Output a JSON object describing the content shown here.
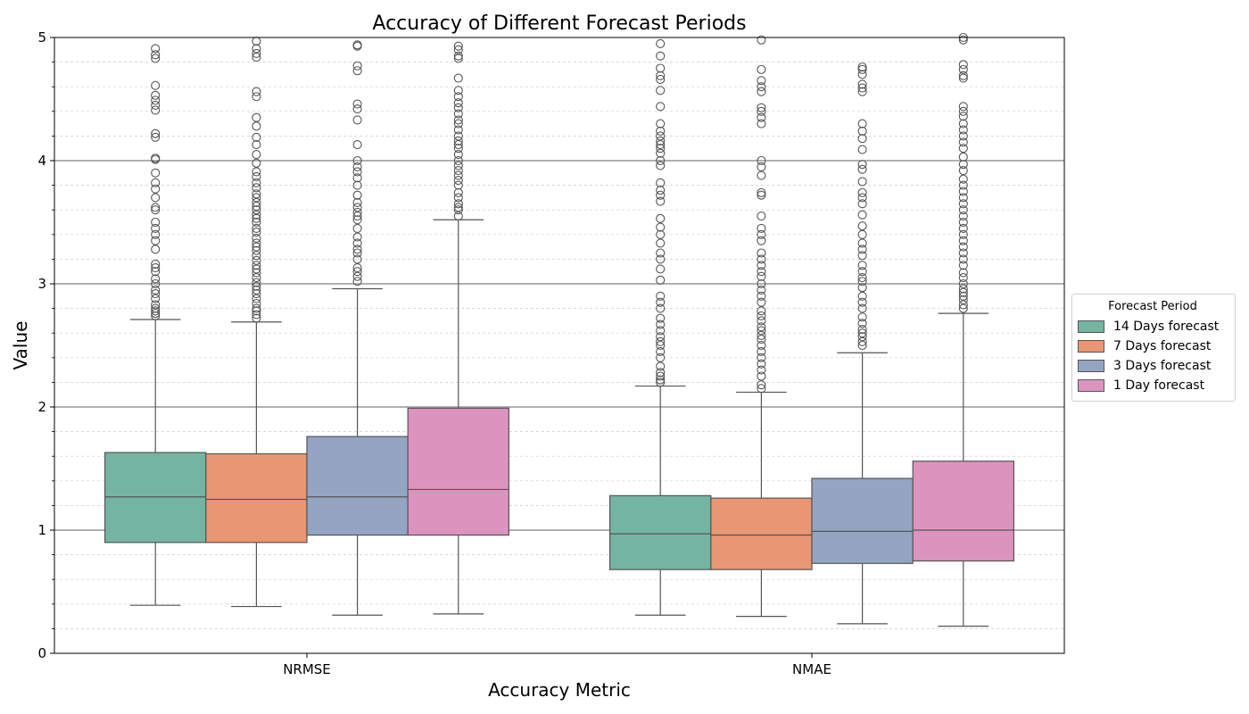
{
  "chart_data": {
    "type": "box",
    "title": "Accuracy of Different Forecast Periods",
    "xlabel": "Accuracy Metric",
    "ylabel": "Value",
    "ylim": [
      0,
      5
    ],
    "yticks": [
      "0",
      "1",
      "2",
      "3",
      "4",
      "5"
    ],
    "major_grid": true,
    "minor_grid": true,
    "categories": [
      "NRMSE",
      "NMAE"
    ],
    "legend": {
      "title": "Forecast Period",
      "placement": "center-right outside"
    },
    "series": [
      {
        "name": "14 Days forecast",
        "color": "#73b5a1",
        "boxes": [
          {
            "whisker_low": 0.39,
            "q1": 0.9,
            "median": 1.27,
            "q3": 1.63,
            "whisker_high": 2.71,
            "outliers": [
              2.74,
              2.76,
              2.78,
              2.8,
              2.83,
              2.88,
              2.92,
              2.95,
              3.0,
              3.04,
              3.1,
              3.13,
              3.16,
              3.28,
              3.35,
              3.4,
              3.45,
              3.5,
              3.6,
              3.62,
              3.7,
              3.77,
              3.82,
              3.9,
              4.01,
              4.02,
              4.19,
              4.22,
              4.41,
              4.45,
              4.49,
              4.53,
              4.61,
              4.83,
              4.86,
              4.91
            ]
          },
          {
            "whisker_low": 0.31,
            "q1": 0.68,
            "median": 0.97,
            "q3": 1.28,
            "whisker_high": 2.17,
            "outliers": [
              2.2,
              2.22,
              2.25,
              2.28,
              2.33,
              2.4,
              2.45,
              2.5,
              2.53,
              2.57,
              2.62,
              2.67,
              2.72,
              2.8,
              2.85,
              2.9,
              3.03,
              3.12,
              3.2,
              3.25,
              3.33,
              3.4,
              3.46,
              3.53,
              3.67,
              3.72,
              3.76,
              3.82,
              3.96,
              4.0,
              4.06,
              4.1,
              4.13,
              4.16,
              4.2,
              4.24,
              4.3,
              4.44,
              4.57,
              4.66,
              4.69,
              4.75,
              4.85,
              4.95
            ]
          }
        ]
      },
      {
        "name": "7 Days forecast",
        "color": "#e99772",
        "boxes": [
          {
            "whisker_low": 0.38,
            "q1": 0.9,
            "median": 1.25,
            "q3": 1.62,
            "whisker_high": 2.69,
            "outliers": [
              2.72,
              2.75,
              2.78,
              2.8,
              2.84,
              2.88,
              2.92,
              2.95,
              2.98,
              3.01,
              3.05,
              3.09,
              3.12,
              3.15,
              3.19,
              3.23,
              3.27,
              3.3,
              3.33,
              3.37,
              3.42,
              3.45,
              3.5,
              3.53,
              3.56,
              3.6,
              3.63,
              3.66,
              3.7,
              3.73,
              3.78,
              3.82,
              3.87,
              3.91,
              3.98,
              4.05,
              4.13,
              4.19,
              4.28,
              4.35,
              4.52,
              4.56,
              4.84,
              4.87,
              4.91,
              4.97
            ]
          },
          {
            "whisker_low": 0.3,
            "q1": 0.68,
            "median": 0.96,
            "q3": 1.26,
            "whisker_high": 2.12,
            "outliers": [
              2.15,
              2.18,
              2.25,
              2.3,
              2.35,
              2.4,
              2.45,
              2.5,
              2.55,
              2.58,
              2.62,
              2.65,
              2.7,
              2.74,
              2.78,
              2.85,
              2.9,
              2.95,
              3.0,
              3.06,
              3.1,
              3.15,
              3.2,
              3.25,
              3.35,
              3.4,
              3.45,
              3.55,
              3.72,
              3.74,
              3.88,
              3.95,
              4.0,
              4.3,
              4.35,
              4.4,
              4.43,
              4.56,
              4.6,
              4.65,
              4.74,
              4.98
            ]
          }
        ]
      },
      {
        "name": "3 Days forecast",
        "color": "#94a4c3",
        "boxes": [
          {
            "whisker_low": 0.31,
            "q1": 0.96,
            "median": 1.27,
            "q3": 1.76,
            "whisker_high": 2.96,
            "outliers": [
              3.02,
              3.06,
              3.1,
              3.13,
              3.2,
              3.25,
              3.28,
              3.33,
              3.38,
              3.45,
              3.52,
              3.55,
              3.58,
              3.62,
              3.66,
              3.72,
              3.8,
              3.86,
              3.91,
              3.95,
              4.0,
              4.13,
              4.33,
              4.42,
              4.46,
              4.73,
              4.77,
              4.93,
              4.94
            ]
          },
          {
            "whisker_low": 0.24,
            "q1": 0.73,
            "median": 0.99,
            "q3": 1.42,
            "whisker_high": 2.44,
            "outliers": [
              2.5,
              2.53,
              2.57,
              2.6,
              2.63,
              2.68,
              2.73,
              2.8,
              2.85,
              2.9,
              2.97,
              3.02,
              3.05,
              3.1,
              3.15,
              3.23,
              3.28,
              3.33,
              3.4,
              3.47,
              3.56,
              3.65,
              3.7,
              3.74,
              3.83,
              3.93,
              3.97,
              4.09,
              4.18,
              4.24,
              4.3,
              4.56,
              4.59,
              4.62,
              4.7,
              4.74,
              4.76
            ]
          }
        ]
      },
      {
        "name": "1 Day forecast",
        "color": "#dc94bf",
        "boxes": [
          {
            "whisker_low": 0.32,
            "q1": 0.96,
            "median": 1.33,
            "q3": 1.99,
            "whisker_high": 3.52,
            "outliers": [
              3.55,
              3.6,
              3.62,
              3.65,
              3.7,
              3.74,
              3.8,
              3.84,
              3.88,
              3.92,
              3.96,
              4.0,
              4.05,
              4.1,
              4.13,
              4.16,
              4.2,
              4.25,
              4.3,
              4.33,
              4.38,
              4.43,
              4.47,
              4.52,
              4.57,
              4.67,
              4.83,
              4.85,
              4.9,
              4.93
            ]
          },
          {
            "whisker_low": 0.22,
            "q1": 0.75,
            "median": 1.0,
            "q3": 1.56,
            "whisker_high": 2.76,
            "outliers": [
              2.8,
              2.83,
              2.87,
              2.9,
              2.93,
              2.96,
              3.0,
              3.05,
              3.09,
              3.15,
              3.2,
              3.25,
              3.3,
              3.35,
              3.4,
              3.45,
              3.5,
              3.55,
              3.6,
              3.65,
              3.7,
              3.75,
              3.8,
              3.85,
              3.92,
              3.97,
              4.03,
              4.1,
              4.15,
              4.2,
              4.25,
              4.3,
              4.36,
              4.4,
              4.44,
              4.67,
              4.69,
              4.74,
              4.78,
              4.98,
              5.0
            ]
          }
        ]
      }
    ]
  }
}
